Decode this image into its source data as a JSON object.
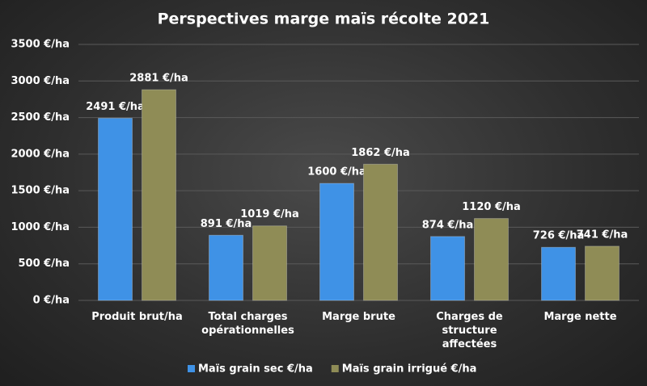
{
  "chart_data": {
    "type": "bar",
    "title": "Perspectives marge maïs récolte 2021",
    "categories": [
      "Produit brut/ha",
      "Total charges\nopérationnelles",
      "Marge brute",
      "Charges de\nstructure\naffectées",
      "Marge nette"
    ],
    "series": [
      {
        "name": "Maïs grain sec €/ha",
        "color": "#3f92e6",
        "values": [
          2491,
          891,
          1600,
          874,
          726
        ],
        "value_labels": [
          "2491 €/ha",
          "891 €/ha",
          "1600 €/ha",
          "874 €/ha",
          "726 €/ha"
        ]
      },
      {
        "name": "Maïs grain irrigué €/ha",
        "color": "#8f8c56",
        "values": [
          2881,
          1019,
          1862,
          1120,
          741
        ],
        "value_labels": [
          "2881 €/ha",
          "1019 €/ha",
          "1862 €/ha",
          "1120 €/ha",
          "741 €/ha"
        ]
      }
    ],
    "ylim": [
      0,
      3500
    ],
    "yticks": [
      {
        "value": 0,
        "label": "0 €/ha"
      },
      {
        "value": 500,
        "label": "500 €/ha"
      },
      {
        "value": 1000,
        "label": "1000 €/ha"
      },
      {
        "value": 1500,
        "label": "1500 €/ha"
      },
      {
        "value": 2000,
        "label": "2000 €/ha"
      },
      {
        "value": 2500,
        "label": "2500 €/ha"
      },
      {
        "value": 3000,
        "label": "3000 €/ha"
      },
      {
        "value": 3500,
        "label": "3500 €/ha"
      }
    ],
    "grid": true,
    "legend": "bottom"
  }
}
